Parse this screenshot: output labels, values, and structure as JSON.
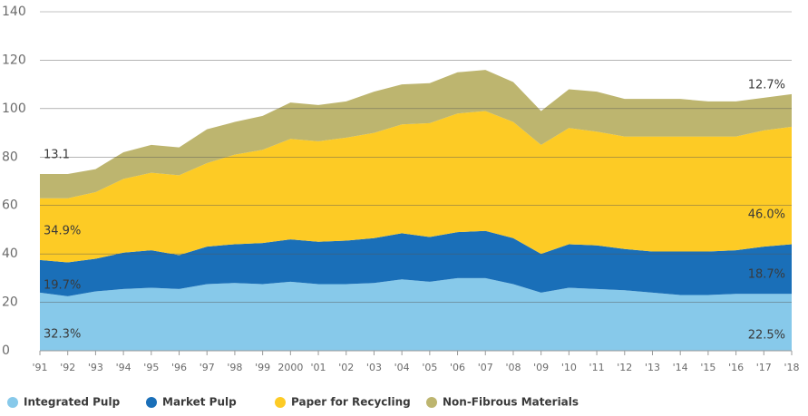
{
  "chart_data": {
    "type": "stacked_area",
    "categories": [
      "'91",
      "'92",
      "'93",
      "'94",
      "'95",
      "'96",
      "'97",
      "'98",
      "'99",
      "2000",
      "'01",
      "'02",
      "'03",
      "'04",
      "'05",
      "'06",
      "'07",
      "'08",
      "'09",
      "'10",
      "'11",
      "'12",
      "'13",
      "'14",
      "'15",
      "'16",
      "'17",
      "'18"
    ],
    "series": [
      {
        "name": "Integrated Pulp",
        "color": "#87c9ea",
        "values": [
          24,
          22.5,
          24.5,
          25.5,
          26,
          25.5,
          27.5,
          28,
          27.5,
          28.5,
          27.5,
          27.5,
          28,
          29.5,
          28.5,
          30,
          30,
          27.5,
          24,
          26,
          25.5,
          25,
          24,
          23,
          23,
          23.5,
          23.5,
          23.5
        ]
      },
      {
        "name": "Market Pulp",
        "color": "#1a6fb8",
        "values": [
          13.5,
          14,
          13.5,
          15,
          15.5,
          14,
          15.5,
          16,
          17,
          17.5,
          17.5,
          18,
          18.5,
          19,
          18.5,
          19,
          19.5,
          19,
          16,
          18,
          18,
          17,
          17,
          18,
          18,
          18,
          19.5,
          20.5
        ]
      },
      {
        "name": "Paper for Recycling",
        "color": "#fdcb25",
        "values": [
          25.5,
          26.5,
          27.5,
          30.5,
          32,
          33,
          34.5,
          37,
          38.5,
          41.5,
          41.5,
          42.5,
          43.5,
          45,
          47,
          49,
          49.5,
          48,
          45,
          48,
          47,
          46.5,
          47.5,
          47.5,
          47.5,
          47,
          48,
          48.5
        ]
      },
      {
        "name": "Non-Fibrous Materials",
        "color": "#bdb56f",
        "values": [
          10,
          10,
          9.5,
          11,
          11.5,
          11.5,
          14,
          13.5,
          14,
          15,
          15,
          15,
          17,
          16.5,
          16.5,
          17,
          17,
          16.5,
          14,
          16,
          16.5,
          15.5,
          15.5,
          15.5,
          14.5,
          14.5,
          13.5,
          13.5
        ]
      }
    ],
    "annotations": [
      "13.1",
      "34.9%",
      "19.7%",
      "32.3%",
      "12.7%",
      "46.0%",
      "18.7%",
      "22.5%"
    ],
    "ylim": [
      0,
      140
    ],
    "yticks": [
      0,
      20,
      40,
      60,
      80,
      100,
      120,
      140
    ],
    "grid": true,
    "legend": "bottom"
  }
}
